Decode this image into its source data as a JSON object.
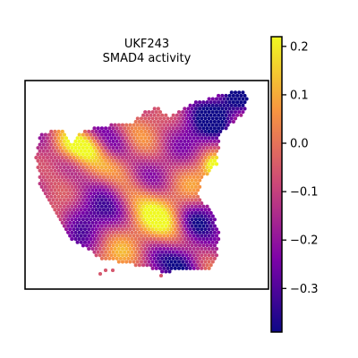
{
  "chart_data": {
    "type": "heatmap",
    "title": "UKF243",
    "subtitle": "SMAD4 activity",
    "xlabel": "",
    "ylabel": "",
    "colormap": "plasma",
    "colorbar": {
      "vmin": -0.39,
      "vmax": 0.22,
      "ticks": [
        0.2,
        0.1,
        0.0,
        -0.1,
        -0.2,
        -0.3
      ],
      "tick_labels": [
        "0.2",
        "0.1",
        "0.0",
        "−0.1",
        "−0.2",
        "−0.3"
      ]
    },
    "grid": false,
    "legend": "colorbar-right",
    "colors": {
      "low": "#0d0887",
      "mid_low": "#7e03a8",
      "mid": "#cc4778",
      "mid_high": "#f89540",
      "high": "#f0f921"
    }
  }
}
